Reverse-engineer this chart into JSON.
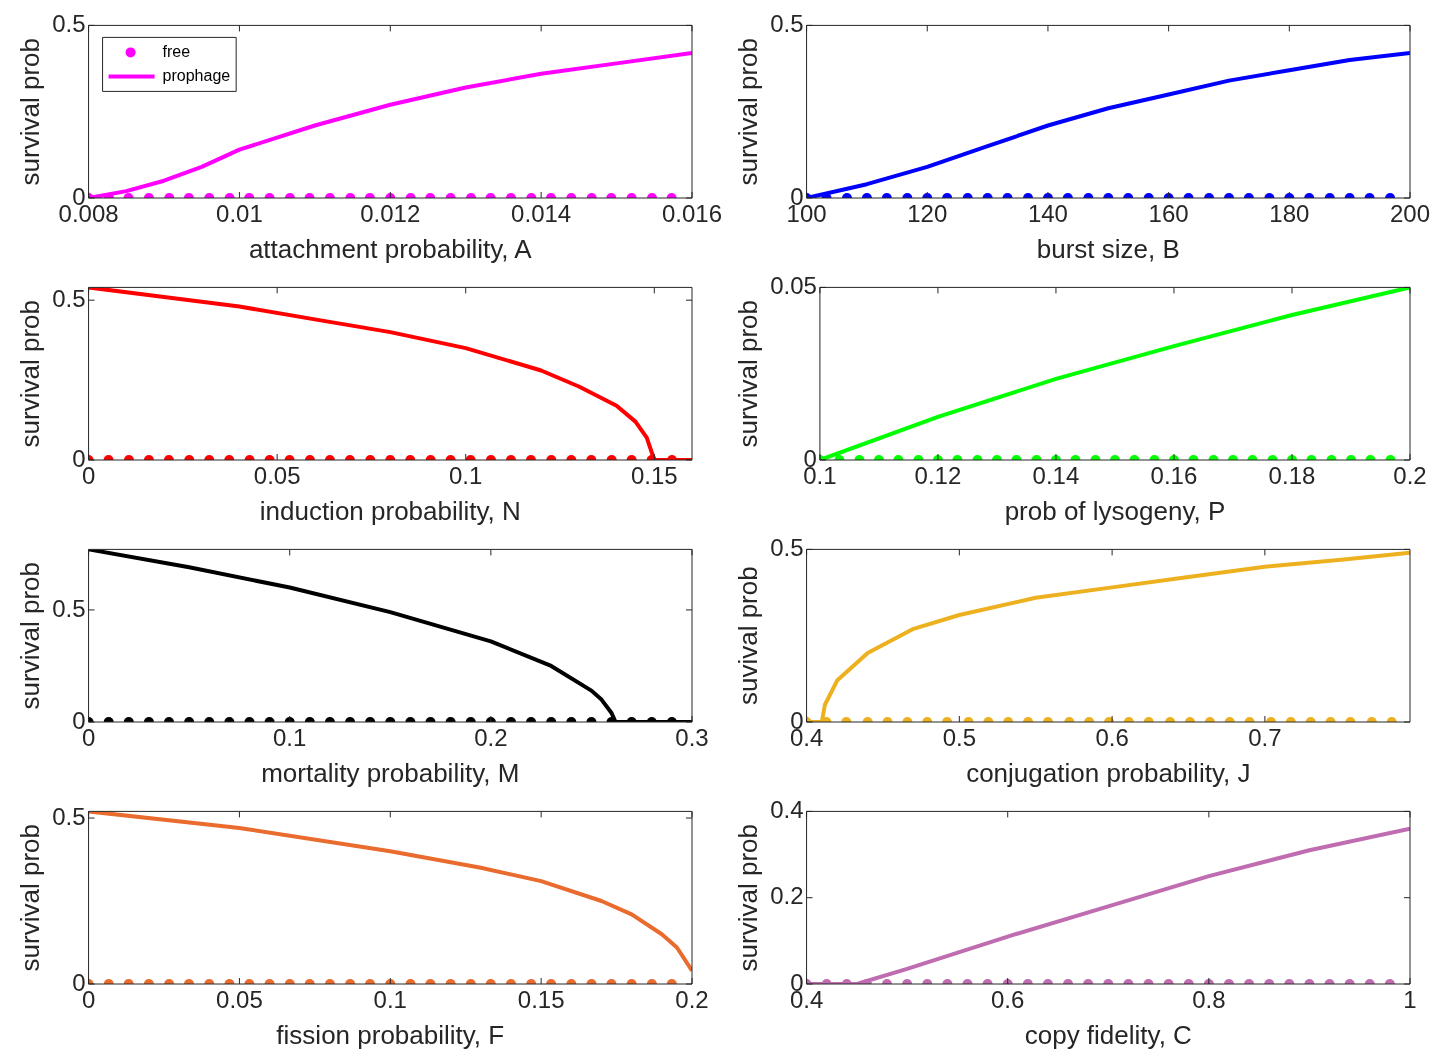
{
  "chart_data": [
    {
      "type": "line",
      "xlabel": "attachment probability, A",
      "ylabel": "survival prob",
      "xlim": [
        0.008,
        0.016
      ],
      "xticks": [
        0.008,
        0.01,
        0.012,
        0.014,
        0.016
      ],
      "ylim": [
        0,
        0.5
      ],
      "yticks": [
        0,
        0.5
      ],
      "legend": "top left",
      "grid": false,
      "series": [
        {
          "name": "free",
          "type": "scatter",
          "marker": "circle",
          "color": "#ff00ff",
          "x": [
            0.008,
            0.00827,
            0.00853,
            0.0088,
            0.00907,
            0.00933,
            0.0096,
            0.00987,
            0.01013,
            0.0104,
            0.01067,
            0.01093,
            0.0112,
            0.01147,
            0.01173,
            0.012,
            0.01227,
            0.01253,
            0.0128,
            0.01307,
            0.01333,
            0.0136,
            0.01387,
            0.01413,
            0.0144,
            0.01467,
            0.01493,
            0.0152,
            0.01547,
            0.01573
          ],
          "values": [
            0,
            0,
            0,
            0,
            0,
            0,
            0,
            0,
            0,
            0,
            0,
            0,
            0,
            0,
            0,
            0,
            0,
            0,
            0,
            0,
            0,
            0,
            0,
            0,
            0,
            0,
            0,
            0,
            0,
            0
          ]
        },
        {
          "name": "prophage",
          "type": "line",
          "marker": "none",
          "color": "#ff00ff",
          "x": [
            0.008,
            0.0085,
            0.009,
            0.0095,
            0.01,
            0.011,
            0.012,
            0.013,
            0.014,
            0.015,
            0.016
          ],
          "values": [
            0,
            0.02,
            0.05,
            0.09,
            0.14,
            0.21,
            0.27,
            0.32,
            0.36,
            0.39,
            0.42
          ]
        }
      ]
    },
    {
      "type": "line",
      "xlabel": "burst size, B",
      "ylabel": "survival prob",
      "xlim": [
        100,
        200
      ],
      "xticks": [
        100,
        120,
        140,
        160,
        180,
        200
      ],
      "ylim": [
        0,
        0.5
      ],
      "yticks": [
        0,
        0.5
      ],
      "grid": false,
      "series": [
        {
          "type": "scatter",
          "marker": "circle",
          "color": "#0000ff",
          "x": [
            100,
            103.3,
            106.7,
            110,
            113.3,
            116.7,
            120,
            123.3,
            126.7,
            130,
            133.3,
            136.7,
            140,
            143.3,
            146.7,
            150,
            153.3,
            156.7,
            160,
            163.3,
            166.7,
            170,
            173.3,
            176.7,
            180,
            183.3,
            186.7,
            190,
            193.3,
            196.7
          ],
          "values": [
            0,
            0,
            0,
            0,
            0,
            0,
            0,
            0,
            0,
            0,
            0,
            0,
            0,
            0,
            0,
            0,
            0,
            0,
            0,
            0,
            0,
            0,
            0,
            0,
            0,
            0,
            0,
            0,
            0,
            0
          ]
        },
        {
          "type": "line",
          "marker": "none",
          "color": "#0000ff",
          "x": [
            100,
            110,
            120,
            130,
            140,
            150,
            160,
            170,
            180,
            190,
            200
          ],
          "values": [
            0,
            0.04,
            0.09,
            0.15,
            0.21,
            0.26,
            0.3,
            0.34,
            0.37,
            0.4,
            0.42
          ]
        }
      ]
    },
    {
      "type": "line",
      "xlabel": "induction probability, N",
      "ylabel": "survival prob",
      "xlim": [
        0,
        0.16
      ],
      "xticks": [
        0,
        0.05,
        0.1,
        0.15
      ],
      "ylim": [
        0,
        0.54
      ],
      "yticks": [
        0,
        0.5
      ],
      "grid": false,
      "series": [
        {
          "type": "scatter",
          "marker": "circle",
          "color": "#ff0000",
          "x": [
            0,
            0.0053,
            0.0107,
            0.016,
            0.0213,
            0.0267,
            0.032,
            0.0373,
            0.0427,
            0.048,
            0.0533,
            0.0587,
            0.064,
            0.0693,
            0.0747,
            0.08,
            0.0853,
            0.0907,
            0.096,
            0.1013,
            0.1067,
            0.112,
            0.1173,
            0.1227,
            0.128,
            0.1333,
            0.1387,
            0.144,
            0.1493,
            0.1547
          ],
          "values": [
            0,
            0,
            0,
            0,
            0,
            0,
            0,
            0,
            0,
            0,
            0,
            0,
            0,
            0,
            0,
            0,
            0,
            0,
            0,
            0,
            0,
            0,
            0,
            0,
            0,
            0,
            0,
            0,
            0,
            0
          ]
        },
        {
          "type": "line",
          "marker": "none",
          "color": "#ff0000",
          "x": [
            0,
            0.02,
            0.04,
            0.06,
            0.08,
            0.1,
            0.12,
            0.13,
            0.14,
            0.145,
            0.148,
            0.15,
            0.16
          ],
          "values": [
            0.54,
            0.51,
            0.48,
            0.44,
            0.4,
            0.35,
            0.28,
            0.23,
            0.17,
            0.12,
            0.07,
            0,
            0
          ]
        }
      ]
    },
    {
      "type": "line",
      "xlabel": "prob of lysogeny, P",
      "ylabel": "survival prob",
      "xlim": [
        0.1,
        0.2
      ],
      "xticks": [
        0.1,
        0.12,
        0.14,
        0.16,
        0.18,
        0.2
      ],
      "ylim": [
        0,
        0.05
      ],
      "yticks": [
        0,
        0.05
      ],
      "grid": false,
      "series": [
        {
          "type": "scatter",
          "marker": "circle",
          "color": "#00ff00",
          "x": [
            0.1,
            0.1033,
            0.1067,
            0.11,
            0.1133,
            0.1167,
            0.12,
            0.1233,
            0.1267,
            0.13,
            0.1333,
            0.1367,
            0.14,
            0.1433,
            0.1467,
            0.15,
            0.1533,
            0.1567,
            0.16,
            0.1633,
            0.1667,
            0.17,
            0.1733,
            0.1767,
            0.18,
            0.1833,
            0.1867,
            0.19,
            0.1933,
            0.1967
          ],
          "values": [
            0,
            0,
            0,
            0,
            0,
            0,
            0,
            0,
            0,
            0,
            0,
            0,
            0,
            0,
            0,
            0,
            0,
            0,
            0,
            0,
            0,
            0,
            0,
            0,
            0,
            0,
            0,
            0,
            0,
            0
          ]
        },
        {
          "type": "line",
          "marker": "none",
          "color": "#00ff00",
          "x": [
            0.1,
            0.12,
            0.14,
            0.16,
            0.18,
            0.2
          ],
          "values": [
            0,
            0.0125,
            0.0235,
            0.033,
            0.042,
            0.05
          ]
        }
      ]
    },
    {
      "type": "line",
      "xlabel": "mortality probability, M",
      "ylabel": "survival prob",
      "xlim": [
        0,
        0.3
      ],
      "xticks": [
        0,
        0.1,
        0.2,
        0.3
      ],
      "ylim": [
        0,
        0.77
      ],
      "yticks": [
        0,
        0.5
      ],
      "grid": false,
      "series": [
        {
          "type": "scatter",
          "marker": "circle",
          "color": "#000000",
          "x": [
            0,
            0.01,
            0.02,
            0.03,
            0.04,
            0.05,
            0.06,
            0.07,
            0.08,
            0.09,
            0.1,
            0.11,
            0.12,
            0.13,
            0.14,
            0.15,
            0.16,
            0.17,
            0.18,
            0.19,
            0.2,
            0.21,
            0.22,
            0.23,
            0.24,
            0.25,
            0.26,
            0.27,
            0.28,
            0.29
          ],
          "values": [
            0,
            0,
            0,
            0,
            0,
            0,
            0,
            0,
            0,
            0,
            0,
            0,
            0,
            0,
            0,
            0,
            0,
            0,
            0,
            0,
            0,
            0,
            0,
            0,
            0,
            0,
            0,
            0,
            0,
            0
          ]
        },
        {
          "type": "line",
          "marker": "none",
          "color": "#000000",
          "x": [
            0,
            0.05,
            0.1,
            0.15,
            0.2,
            0.23,
            0.25,
            0.255,
            0.26,
            0.262,
            0.3
          ],
          "values": [
            0.77,
            0.69,
            0.6,
            0.49,
            0.36,
            0.25,
            0.14,
            0.1,
            0.04,
            0,
            0
          ]
        }
      ]
    },
    {
      "type": "line",
      "xlabel": "conjugation probability, J",
      "ylabel": "suvival prob",
      "xlim": [
        0.4,
        0.795
      ],
      "xticks": [
        0.4,
        0.5,
        0.6,
        0.7
      ],
      "ylim": [
        0,
        0.5
      ],
      "yticks": [
        0,
        0.5
      ],
      "grid": false,
      "series": [
        {
          "type": "scatter",
          "marker": "circle",
          "color": "#edb120",
          "x": [
            0.4,
            0.413,
            0.426,
            0.44,
            0.453,
            0.466,
            0.479,
            0.492,
            0.506,
            0.519,
            0.532,
            0.545,
            0.558,
            0.572,
            0.585,
            0.598,
            0.611,
            0.624,
            0.638,
            0.651,
            0.664,
            0.677,
            0.69,
            0.704,
            0.717,
            0.73,
            0.743,
            0.756,
            0.77,
            0.783
          ],
          "values": [
            0,
            0,
            0,
            0,
            0,
            0,
            0,
            0,
            0,
            0,
            0,
            0,
            0,
            0,
            0,
            0,
            0,
            0,
            0,
            0,
            0,
            0,
            0,
            0,
            0,
            0,
            0,
            0,
            0,
            0
          ]
        },
        {
          "type": "line",
          "marker": "none",
          "color": "#edb120",
          "x": [
            0.4,
            0.41,
            0.412,
            0.42,
            0.44,
            0.47,
            0.5,
            0.55,
            0.6,
            0.65,
            0.7,
            0.75,
            0.795
          ],
          "values": [
            0,
            0,
            0.05,
            0.12,
            0.2,
            0.27,
            0.31,
            0.36,
            0.39,
            0.42,
            0.45,
            0.47,
            0.49
          ]
        }
      ]
    },
    {
      "type": "line",
      "xlabel": "fission probability, F",
      "ylabel": "survival prob",
      "xlim": [
        0,
        0.2
      ],
      "xticks": [
        0,
        0.05,
        0.1,
        0.15,
        0.2
      ],
      "ylim": [
        0,
        0.52
      ],
      "yticks": [
        0,
        0.5
      ],
      "grid": false,
      "series": [
        {
          "type": "scatter",
          "marker": "circle",
          "color": "#ea6b2e",
          "x": [
            0,
            0.0067,
            0.0133,
            0.02,
            0.0267,
            0.0333,
            0.04,
            0.0467,
            0.0533,
            0.06,
            0.0667,
            0.0733,
            0.08,
            0.0867,
            0.0933,
            0.1,
            0.1067,
            0.1133,
            0.12,
            0.1267,
            0.1333,
            0.14,
            0.1467,
            0.1533,
            0.16,
            0.1667,
            0.1733,
            0.18,
            0.1867,
            0.1933
          ],
          "values": [
            0,
            0,
            0,
            0,
            0,
            0,
            0,
            0,
            0,
            0,
            0,
            0,
            0,
            0,
            0,
            0,
            0,
            0,
            0,
            0,
            0,
            0,
            0,
            0,
            0,
            0,
            0,
            0,
            0,
            0
          ]
        },
        {
          "type": "line",
          "marker": "none",
          "color": "#ea6b2e",
          "x": [
            0,
            0.05,
            0.1,
            0.13,
            0.15,
            0.17,
            0.18,
            0.19,
            0.195,
            0.2
          ],
          "values": [
            0.52,
            0.47,
            0.4,
            0.35,
            0.31,
            0.25,
            0.21,
            0.15,
            0.11,
            0.04
          ]
        }
      ]
    },
    {
      "type": "line",
      "xlabel": "copy fidelity, C",
      "ylabel": "survival prob",
      "xlim": [
        0.4,
        1
      ],
      "xticks": [
        0.4,
        0.6,
        0.8,
        1
      ],
      "ylim": [
        0,
        0.4
      ],
      "yticks": [
        0,
        0.2,
        0.4
      ],
      "grid": false,
      "series": [
        {
          "type": "scatter",
          "marker": "circle",
          "color": "#bf6cb0",
          "x": [
            0.4,
            0.42,
            0.44,
            0.46,
            0.48,
            0.5,
            0.52,
            0.54,
            0.56,
            0.58,
            0.6,
            0.62,
            0.64,
            0.66,
            0.68,
            0.7,
            0.72,
            0.74,
            0.76,
            0.78,
            0.8,
            0.82,
            0.84,
            0.86,
            0.88,
            0.9,
            0.92,
            0.94,
            0.96,
            0.98
          ],
          "values": [
            0,
            0,
            0,
            0,
            0,
            0,
            0,
            0,
            0,
            0,
            0,
            0,
            0,
            0,
            0,
            0,
            0,
            0,
            0,
            0,
            0,
            0,
            0,
            0,
            0,
            0,
            0,
            0,
            0,
            0
          ]
        },
        {
          "type": "line",
          "marker": "none",
          "color": "#bf6cb0",
          "x": [
            0.4,
            0.45,
            0.5,
            0.6,
            0.7,
            0.8,
            0.9,
            1
          ],
          "values": [
            0,
            0,
            0.035,
            0.11,
            0.18,
            0.25,
            0.31,
            0.36
          ]
        }
      ]
    }
  ]
}
